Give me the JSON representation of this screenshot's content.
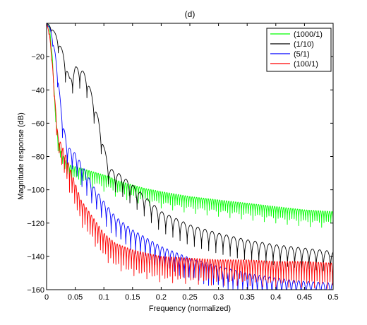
{
  "chart_data": {
    "type": "line",
    "title": "(d)",
    "xlabel": "Frequency (normalized)",
    "ylabel": "Magnitude response (dB)",
    "xlim": [
      0,
      0.5
    ],
    "ylim": [
      -160,
      0
    ],
    "xticks": [
      0,
      0.05,
      0.1,
      0.15,
      0.2,
      0.25,
      0.3,
      0.35,
      0.4,
      0.45,
      0.5
    ],
    "xticklabels": [
      "0",
      "0.05",
      "0.1",
      "0.15",
      "0.2",
      "0.25",
      "0.3",
      "0.35",
      "0.4",
      "0.45",
      "0.5"
    ],
    "yticks": [
      -160,
      -140,
      -120,
      -100,
      -80,
      -60,
      -40,
      -20
    ],
    "yticklabels": [
      "−160",
      "−140",
      "−120",
      "−100",
      "−80",
      "−60",
      "−40",
      "−20"
    ],
    "grid": false,
    "legend_position": "top-right",
    "series": [
      {
        "name": "(1000/1)",
        "color": "#00ff00",
        "x": [
          0,
          0.005,
          0.01,
          0.015,
          0.02,
          0.025,
          0.03,
          0.035,
          0.04,
          0.05,
          0.06,
          0.07,
          0.08,
          0.09,
          0.1,
          0.11,
          0.12,
          0.13,
          0.15,
          0.17,
          0.2,
          0.25,
          0.3,
          0.35,
          0.4,
          0.45,
          0.5
        ],
        "y": [
          0,
          -2,
          -20,
          -52,
          -70,
          -76,
          -80,
          -83,
          -85,
          -86,
          -87,
          -88,
          -89,
          -90,
          -91,
          -92,
          -94,
          -95,
          -97,
          -99,
          -101,
          -104,
          -106,
          -108,
          -110,
          -112,
          -113
        ],
        "ripple_period": 0.004,
        "ripple_depth": 10
      },
      {
        "name": "(1/10)",
        "color": "#000000",
        "x": [
          0,
          0.005,
          0.01,
          0.02,
          0.03,
          0.04,
          0.045,
          0.05,
          0.06,
          0.07,
          0.08,
          0.09,
          0.1,
          0.11,
          0.13,
          0.15,
          0.2,
          0.25,
          0.3,
          0.35,
          0.4,
          0.45,
          0.5
        ],
        "y": [
          0,
          -1,
          -3,
          -9,
          -19,
          -33,
          -30,
          -26,
          -27,
          -32,
          -44,
          -57,
          -74,
          -87,
          -91,
          -97,
          -113,
          -121,
          -126,
          -130,
          -133,
          -135,
          -137
        ],
        "ripple_period": 0.0125,
        "ripple_depth": 14
      },
      {
        "name": "(5/1)",
        "color": "#0000ff",
        "x": [
          0,
          0.005,
          0.01,
          0.015,
          0.02,
          0.025,
          0.03,
          0.035,
          0.04,
          0.05,
          0.06,
          0.07,
          0.08,
          0.1,
          0.12,
          0.15,
          0.2,
          0.25,
          0.3,
          0.35,
          0.4,
          0.45,
          0.5
        ],
        "y": [
          0,
          -2,
          -8,
          -18,
          -32,
          -50,
          -62,
          -72,
          -75,
          -78,
          -84,
          -90,
          -97,
          -107,
          -116,
          -124,
          -134,
          -141,
          -146,
          -150,
          -153,
          -155,
          -156
        ],
        "ripple_period": 0.0085,
        "ripple_depth": 16
      },
      {
        "name": "(100/1)",
        "color": "#ff0000",
        "x": [
          0,
          0.005,
          0.01,
          0.015,
          0.02,
          0.025,
          0.03,
          0.04,
          0.05,
          0.06,
          0.08,
          0.1,
          0.12,
          0.15,
          0.2,
          0.25,
          0.3,
          0.35,
          0.4,
          0.45,
          0.5
        ],
        "y": [
          0,
          -6,
          -24,
          -48,
          -68,
          -72,
          -76,
          -86,
          -96,
          -106,
          -116,
          -126,
          -132,
          -136,
          -140,
          -141,
          -142,
          -142,
          -143,
          -143,
          -144
        ],
        "ripple_period": 0.0045,
        "ripple_depth": 18
      }
    ]
  }
}
